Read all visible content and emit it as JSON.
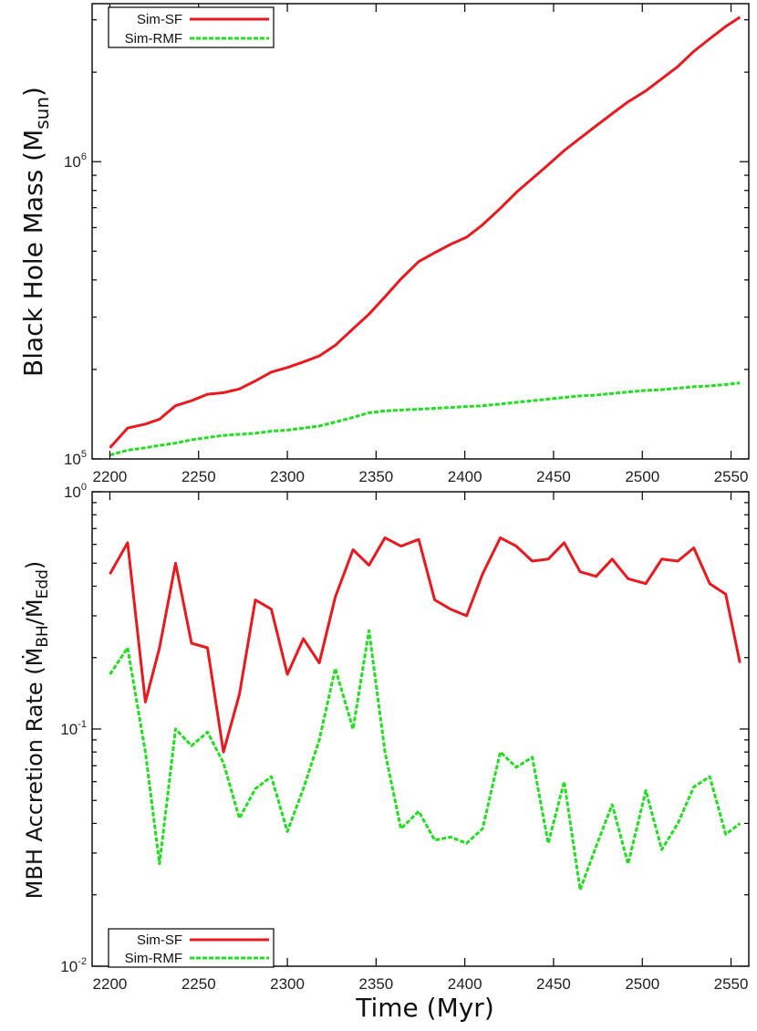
{
  "chart_data": [
    {
      "type": "line",
      "title": "",
      "xlabel": "",
      "ylabel": "Black Hole Mass (M",
      "ylabel_sub": "sun",
      "ylabel_close": ")",
      "yscale": "log",
      "xlim": [
        2190,
        2560
      ],
      "ylim": [
        100000,
        3400000
      ],
      "xticks": [
        2200,
        2250,
        2300,
        2350,
        2400,
        2450,
        2500,
        2550
      ],
      "yticks": [
        {
          "value": 100000,
          "base": "10",
          "exp": "5"
        },
        {
          "value": 1000000,
          "base": "10",
          "exp": "6"
        }
      ],
      "legend": {
        "position": "top-left",
        "entries": [
          "Sim-SF",
          "Sim-RMF"
        ]
      },
      "series": [
        {
          "name": "Sim-SF",
          "color": "#e8191f",
          "style": "solid",
          "x": [
            2200,
            2210,
            2220,
            2228,
            2237,
            2246,
            2255,
            2264,
            2273,
            2282,
            2291,
            2300,
            2309,
            2318,
            2327,
            2337,
            2346,
            2355,
            2364,
            2374,
            2383,
            2392,
            2401,
            2410,
            2420,
            2429,
            2438,
            2447,
            2456,
            2465,
            2474,
            2483,
            2492,
            2502,
            2511,
            2520,
            2529,
            2538,
            2547,
            2555
          ],
          "values": [
            109000,
            127000,
            131000,
            136000,
            151000,
            157000,
            165000,
            167000,
            172000,
            183000,
            196000,
            203000,
            212000,
            222000,
            241000,
            274000,
            307000,
            351000,
            403000,
            461000,
            494000,
            527000,
            557000,
            613000,
            697000,
            788000,
            877000,
            976000,
            1090000,
            1200000,
            1320000,
            1450000,
            1590000,
            1730000,
            1900000,
            2090000,
            2350000,
            2590000,
            2850000,
            3060000
          ]
        },
        {
          "name": "Sim-RMF",
          "color": "#22dd22",
          "style": "dashed",
          "x": [
            2200,
            2210,
            2220,
            2228,
            2237,
            2246,
            2255,
            2264,
            2273,
            2282,
            2291,
            2300,
            2309,
            2318,
            2327,
            2337,
            2346,
            2355,
            2364,
            2374,
            2383,
            2392,
            2401,
            2410,
            2420,
            2429,
            2438,
            2447,
            2456,
            2465,
            2474,
            2483,
            2492,
            2502,
            2511,
            2520,
            2529,
            2538,
            2547,
            2555
          ],
          "values": [
            103000,
            107000,
            109000,
            111000,
            113000,
            116000,
            118000,
            120000,
            121000,
            122000,
            124000,
            125000,
            127000,
            129000,
            133000,
            138000,
            143000,
            145000,
            146000,
            147000,
            148000,
            149000,
            150000,
            151000,
            153000,
            155000,
            157000,
            159000,
            161000,
            163000,
            164000,
            166000,
            168000,
            170000,
            171000,
            173000,
            175000,
            176000,
            178000,
            180000
          ]
        }
      ]
    },
    {
      "type": "line",
      "title": "",
      "xlabel": "Time (Myr)",
      "ylabel": "MBH Accretion Rate (Ṁ",
      "ylabel_sub1": "BH",
      "ylabel_mid": "/Ṁ",
      "ylabel_sub2": "Edd",
      "ylabel_close": ")",
      "yscale": "log",
      "xlim": [
        2190,
        2560
      ],
      "ylim": [
        0.01,
        1
      ],
      "xticks": [
        2200,
        2250,
        2300,
        2350,
        2400,
        2450,
        2500,
        2550
      ],
      "yticks": [
        {
          "value": 0.01,
          "base": "10",
          "exp": "-2"
        },
        {
          "value": 0.1,
          "base": "10",
          "exp": "-1"
        },
        {
          "value": 1,
          "base": "10",
          "exp": "0"
        }
      ],
      "legend": {
        "position": "bottom-left",
        "entries": [
          "Sim-SF",
          "Sim-RMF"
        ]
      },
      "series": [
        {
          "name": "Sim-SF",
          "color": "#e8191f",
          "style": "solid",
          "x": [
            2200,
            2210,
            2220,
            2228,
            2237,
            2246,
            2255,
            2264,
            2273,
            2282,
            2291,
            2300,
            2309,
            2318,
            2327,
            2337,
            2346,
            2355,
            2364,
            2374,
            2383,
            2392,
            2401,
            2410,
            2420,
            2429,
            2438,
            2447,
            2456,
            2465,
            2474,
            2483,
            2492,
            2502,
            2511,
            2520,
            2529,
            2538,
            2547,
            2555
          ],
          "values": [
            0.45,
            0.61,
            0.13,
            0.22,
            0.5,
            0.23,
            0.22,
            0.08,
            0.14,
            0.35,
            0.32,
            0.17,
            0.24,
            0.19,
            0.36,
            0.57,
            0.49,
            0.64,
            0.59,
            0.63,
            0.35,
            0.32,
            0.3,
            0.45,
            0.64,
            0.59,
            0.51,
            0.52,
            0.61,
            0.46,
            0.44,
            0.52,
            0.43,
            0.41,
            0.52,
            0.51,
            0.58,
            0.41,
            0.37,
            0.19
          ]
        },
        {
          "name": "Sim-RMF",
          "color": "#22dd22",
          "style": "dashed",
          "x": [
            2200,
            2210,
            2220,
            2228,
            2237,
            2246,
            2255,
            2264,
            2273,
            2282,
            2291,
            2300,
            2309,
            2318,
            2327,
            2337,
            2346,
            2355,
            2364,
            2374,
            2383,
            2392,
            2401,
            2410,
            2420,
            2429,
            2438,
            2447,
            2456,
            2465,
            2474,
            2483,
            2492,
            2502,
            2511,
            2520,
            2529,
            2538,
            2547,
            2555
          ],
          "values": [
            0.17,
            0.22,
            0.08,
            0.027,
            0.1,
            0.085,
            0.097,
            0.072,
            0.042,
            0.056,
            0.063,
            0.037,
            0.056,
            0.09,
            0.18,
            0.1,
            0.26,
            0.08,
            0.038,
            0.045,
            0.034,
            0.035,
            0.033,
            0.038,
            0.08,
            0.069,
            0.076,
            0.033,
            0.06,
            0.021,
            0.032,
            0.048,
            0.027,
            0.055,
            0.031,
            0.04,
            0.057,
            0.063,
            0.036,
            0.04
          ]
        }
      ]
    }
  ]
}
